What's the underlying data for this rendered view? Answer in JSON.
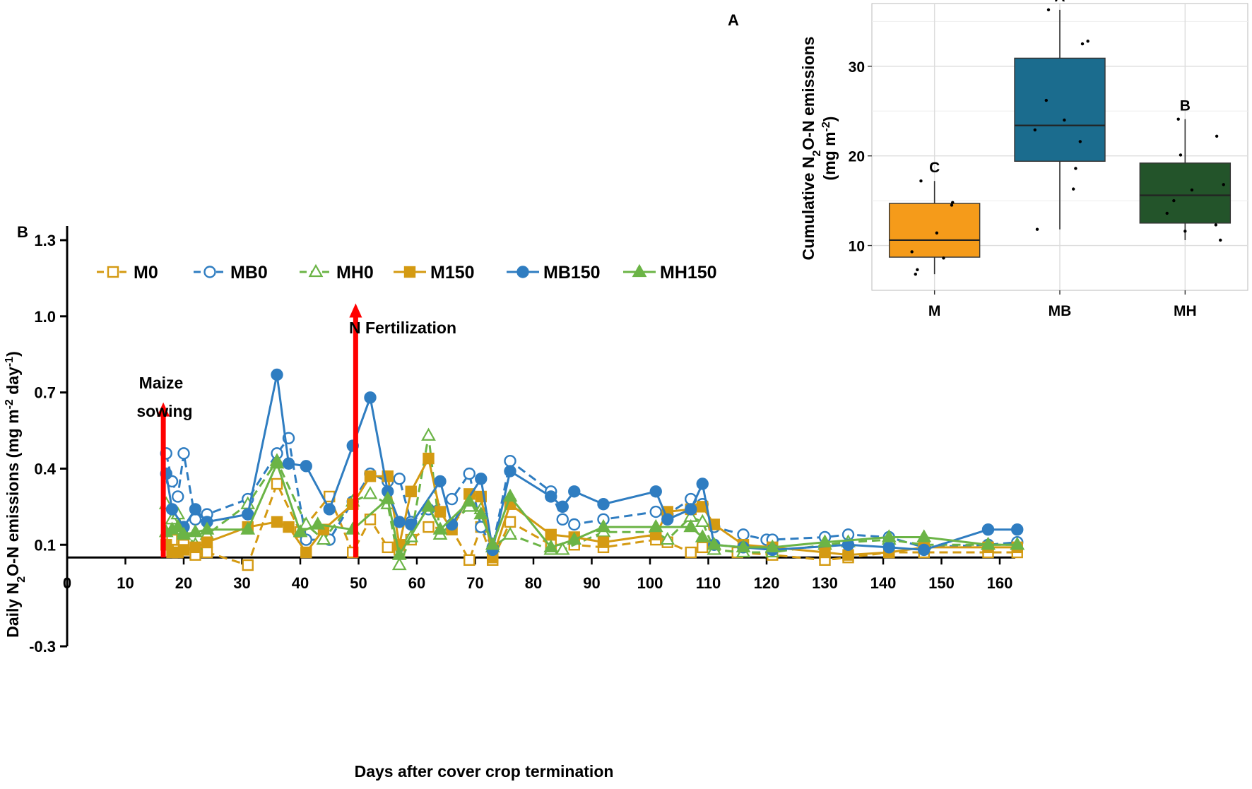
{
  "panel_labels": {
    "a": "A",
    "b": "B"
  },
  "colors": {
    "M": "#D49A12",
    "MB": "#2F7DC1",
    "MH": "#6BB446",
    "arrow": "#FF0000",
    "box_M": "#F59B1A",
    "box_MB": "#1B6C8E",
    "box_MH": "#23542A"
  },
  "annotations": {
    "maize_sowing_line1": "Maize",
    "maize_sowing_line2": "sowing",
    "n_fertilization": "N Fertilization"
  },
  "chart_data": [
    {
      "type": "line",
      "panel": "B",
      "xlabel": "Days after cover crop termination",
      "ylabel": "Daily N₂O-N emissions (mg m⁻² day⁻¹)",
      "ylabel_parts": {
        "pre": "Daily N",
        "sub": "2",
        "mid": "O-N  emissions (mg m",
        "sup1": "-2",
        "mid2": " day",
        "sup2": "-1",
        "post": ")"
      },
      "xlim": [
        0,
        165
      ],
      "ylim": [
        -0.3,
        1.3
      ],
      "x_axis_at_y": 0.05,
      "x_ticks": [
        "0",
        "10",
        "20",
        "30",
        "40",
        "50",
        "60",
        "70",
        "80",
        "90",
        "100",
        "110",
        "120",
        "130",
        "140",
        "150",
        "160"
      ],
      "y_ticks": [
        "-0.3",
        "0.1",
        "0.4",
        "0.7",
        "1.0",
        "1.3"
      ],
      "events": [
        {
          "name": "Maize sowing",
          "x": 16.5,
          "y_top": 0.65
        },
        {
          "name": "N Fertilization",
          "x": 49.5,
          "y_top": 1.04
        }
      ],
      "series": [
        {
          "name": "M0",
          "color": "M",
          "dash": true,
          "marker": "square",
          "filled": false,
          "x": [
            17,
            18,
            19,
            20,
            22,
            24,
            31,
            36,
            40,
            45,
            49,
            52,
            55,
            57,
            59,
            62,
            66,
            69,
            71,
            73,
            76,
            83,
            87,
            92,
            101,
            103,
            107,
            109,
            115,
            121,
            130,
            134,
            141,
            147,
            158,
            163
          ],
          "y": [
            0.1,
            0.12,
            0.08,
            0.1,
            0.06,
            0.07,
            0.02,
            0.34,
            0.15,
            0.29,
            0.07,
            0.2,
            0.09,
            0.08,
            0.12,
            0.17,
            0.16,
            0.04,
            0.17,
            0.04,
            0.19,
            0.1,
            0.1,
            0.09,
            0.12,
            0.11,
            0.07,
            0.09,
            0.07,
            0.06,
            0.04,
            0.05,
            0.07,
            0.07,
            0.07,
            0.07
          ]
        },
        {
          "name": "MB0",
          "color": "MB",
          "dash": true,
          "marker": "circle",
          "filled": false,
          "x": [
            17,
            18,
            19,
            20,
            22,
            24,
            31,
            36,
            38,
            41,
            45,
            49,
            52,
            55,
            57,
            59,
            62,
            66,
            69,
            71,
            73,
            76,
            83,
            85,
            87,
            92,
            101,
            103,
            107,
            109,
            111,
            116,
            120,
            121,
            130,
            134,
            141,
            147,
            158,
            163
          ],
          "y": [
            0.46,
            0.35,
            0.29,
            0.46,
            0.2,
            0.22,
            0.28,
            0.46,
            0.52,
            0.12,
            0.12,
            0.27,
            0.38,
            0.35,
            0.36,
            0.19,
            0.24,
            0.28,
            0.38,
            0.17,
            0.09,
            0.43,
            0.31,
            0.2,
            0.18,
            0.2,
            0.23,
            0.22,
            0.28,
            0.26,
            0.17,
            0.14,
            0.12,
            0.12,
            0.13,
            0.14,
            0.13,
            0.09,
            0.1,
            0.11
          ]
        },
        {
          "name": "MH0",
          "color": "MH",
          "dash": true,
          "marker": "triangle",
          "filled": false,
          "x": [
            17,
            18,
            19,
            20,
            22,
            24,
            31,
            36,
            41,
            44,
            49,
            52,
            55,
            57,
            59,
            62,
            64,
            69,
            71,
            73,
            76,
            83,
            85,
            92,
            101,
            103,
            107,
            109,
            111,
            116,
            121,
            130,
            134,
            141,
            147,
            158,
            163
          ],
          "y": [
            0.26,
            0.2,
            0.22,
            0.15,
            0.1,
            0.14,
            0.26,
            0.43,
            0.18,
            0.12,
            0.27,
            0.3,
            0.26,
            0.02,
            0.13,
            0.53,
            0.14,
            0.25,
            0.24,
            0.09,
            0.14,
            0.08,
            0.08,
            0.15,
            0.15,
            0.12,
            0.21,
            0.19,
            0.08,
            0.07,
            0.07,
            0.1,
            0.11,
            0.12,
            0.1,
            0.1,
            0.1
          ]
        },
        {
          "name": "M150",
          "color": "M",
          "dash": false,
          "marker": "square",
          "filled": true,
          "x": [
            17,
            18,
            19,
            20,
            22,
            24,
            31,
            36,
            38,
            41,
            44,
            49,
            52,
            55,
            57,
            59,
            62,
            64,
            66,
            69,
            71,
            73,
            76,
            83,
            87,
            92,
            101,
            103,
            107,
            109,
            111,
            116,
            121,
            130,
            134,
            141,
            147,
            158,
            163
          ],
          "y": [
            0.1,
            0.07,
            0.07,
            0.08,
            0.09,
            0.11,
            0.17,
            0.19,
            0.17,
            0.07,
            0.16,
            0.26,
            0.37,
            0.37,
            0.1,
            0.31,
            0.44,
            0.23,
            0.16,
            0.3,
            0.29,
            0.05,
            0.26,
            0.14,
            0.13,
            0.11,
            0.14,
            0.23,
            0.24,
            0.25,
            0.18,
            0.1,
            0.09,
            0.07,
            0.06,
            0.07,
            0.09,
            0.09,
            0.09
          ]
        },
        {
          "name": "MB150",
          "color": "MB",
          "dash": false,
          "marker": "circle",
          "filled": true,
          "x": [
            17,
            18,
            20,
            22,
            24,
            31,
            36,
            38,
            41,
            45,
            49,
            52,
            55,
            57,
            59,
            64,
            66,
            71,
            73,
            76,
            83,
            85,
            87,
            92,
            101,
            103,
            107,
            109,
            111,
            116,
            121,
            134,
            141,
            147,
            158,
            163
          ],
          "y": [
            0.38,
            0.24,
            0.17,
            0.24,
            0.19,
            0.22,
            0.77,
            0.42,
            0.41,
            0.24,
            0.49,
            0.68,
            0.31,
            0.19,
            0.18,
            0.35,
            0.18,
            0.36,
            0.08,
            0.39,
            0.29,
            0.25,
            0.31,
            0.26,
            0.31,
            0.2,
            0.24,
            0.34,
            0.1,
            0.09,
            0.08,
            0.1,
            0.09,
            0.08,
            0.16,
            0.16
          ]
        },
        {
          "name": "MH150",
          "color": "MH",
          "dash": false,
          "marker": "triangle",
          "filled": true,
          "x": [
            17,
            18,
            19,
            20,
            22,
            24,
            31,
            36,
            40,
            43,
            49,
            55,
            57,
            62,
            64,
            69,
            71,
            73,
            76,
            83,
            87,
            92,
            101,
            107,
            109,
            111,
            116,
            121,
            130,
            141,
            147,
            158,
            163
          ],
          "y": [
            0.15,
            0.16,
            0.17,
            0.14,
            0.15,
            0.16,
            0.16,
            0.42,
            0.15,
            0.18,
            0.16,
            0.28,
            0.06,
            0.25,
            0.16,
            0.27,
            0.22,
            0.1,
            0.29,
            0.09,
            0.12,
            0.17,
            0.17,
            0.17,
            0.13,
            0.1,
            0.09,
            0.09,
            0.11,
            0.13,
            0.13,
            0.1,
            0.1
          ]
        }
      ]
    },
    {
      "type": "box",
      "panel": "A",
      "ylabel": "Cumulative N₂O-N emissions (mg m⁻²)",
      "ylabel_parts": {
        "pre": "Cumulative  N",
        "sub": "2",
        "post": "O-N  emissions",
        "line2_pre": "(mg m",
        "line2_sup": "-2",
        "line2_post": ")"
      },
      "ylim": [
        5,
        37
      ],
      "y_ticks": [
        10,
        20,
        30
      ],
      "categories": [
        "M",
        "MB",
        "MH"
      ],
      "boxes": [
        {
          "name": "M",
          "min": 6.8,
          "q1": 8.7,
          "median": 10.6,
          "q3": 14.7,
          "max": 17.2,
          "letter": "C",
          "color": "box_M",
          "points": [
            6.8,
            7.3,
            8.6,
            9.3,
            11.4,
            14.5,
            14.8,
            17.2
          ],
          "jitter": [
            -0.42,
            -0.38,
            0.2,
            -0.5,
            0.05,
            0.38,
            0.4,
            -0.3
          ]
        },
        {
          "name": "MB",
          "min": 11.8,
          "q1": 19.4,
          "median": 23.4,
          "q3": 30.9,
          "max": 36.3,
          "letter": "A",
          "color": "box_MB",
          "points": [
            11.8,
            16.3,
            18.6,
            21.6,
            22.9,
            24.0,
            26.2,
            32.5,
            32.8,
            36.3
          ],
          "jitter": [
            -0.5,
            0.3,
            0.35,
            0.45,
            -0.55,
            0.1,
            -0.3,
            0.5,
            0.62,
            -0.25
          ]
        },
        {
          "name": "MH",
          "min": 10.6,
          "q1": 12.5,
          "median": 15.6,
          "q3": 19.2,
          "max": 24.1,
          "letter": "B",
          "color": "box_MH",
          "points": [
            10.6,
            11.6,
            12.3,
            13.6,
            15.0,
            16.2,
            16.8,
            20.1,
            22.2,
            24.1
          ],
          "jitter": [
            0.78,
            0.0,
            0.68,
            -0.4,
            -0.25,
            0.15,
            0.85,
            -0.1,
            0.7,
            -0.15
          ]
        }
      ]
    }
  ]
}
